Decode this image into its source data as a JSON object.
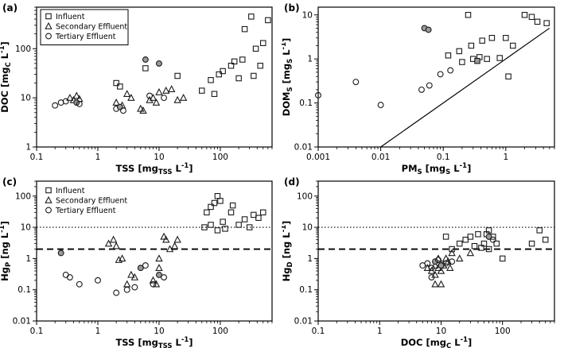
{
  "figure": {
    "background": "#ffffff",
    "axis_color": "#000000",
    "marker_stroke": "#1a1a1a",
    "gray_fill": "#9a9a9a"
  },
  "chart_data": [
    {
      "id": "a",
      "type": "scatter",
      "panel_label": "(a)",
      "xscale": "log",
      "yscale": "log",
      "xlim": [
        0.1,
        700
      ],
      "ylim": [
        1,
        700
      ],
      "xticks": [
        [
          0.1,
          "0.1"
        ],
        [
          1,
          "1"
        ],
        [
          10,
          "10"
        ],
        [
          100,
          "100"
        ]
      ],
      "yticks": [
        [
          1,
          "1"
        ],
        [
          10,
          "10"
        ],
        [
          100,
          "100"
        ]
      ],
      "xlabel_parts": [
        [
          "TSS [mg"
        ],
        [
          "TSS",
          "sub"
        ],
        [
          " L"
        ],
        [
          "-1",
          "sup"
        ],
        [
          "]"
        ]
      ],
      "ylabel_parts": [
        [
          "DOC [mg"
        ],
        [
          "C",
          "sub"
        ],
        [
          " L"
        ],
        [
          "-1",
          "sup"
        ],
        [
          "]"
        ]
      ],
      "legend_box": true,
      "legend": [
        {
          "marker": "square",
          "label": "Influent"
        },
        {
          "marker": "triangle",
          "label": "Secondary Effluent"
        },
        {
          "marker": "circle",
          "label": "Tertiary Effluent"
        }
      ],
      "series": [
        {
          "name": "Influent",
          "marker": "square",
          "points": [
            [
              2,
              20
            ],
            [
              2.3,
              17
            ],
            [
              6,
              40
            ],
            [
              20,
              28
            ],
            [
              50,
              14
            ],
            [
              70,
              23
            ],
            [
              80,
              12
            ],
            [
              95,
              30
            ],
            [
              110,
              35
            ],
            [
              150,
              45
            ],
            [
              170,
              55
            ],
            [
              200,
              25
            ],
            [
              230,
              60
            ],
            [
              250,
              250
            ],
            [
              320,
              450
            ],
            [
              380,
              100
            ],
            [
              450,
              45
            ],
            [
              500,
              130
            ],
            [
              600,
              380
            ],
            [
              350,
              28
            ]
          ]
        },
        {
          "name": "Secondary Effluent",
          "marker": "triangle",
          "points": [
            [
              0.35,
              10
            ],
            [
              0.4,
              9
            ],
            [
              0.45,
              11
            ],
            [
              0.5,
              9.5
            ],
            [
              2,
              8
            ],
            [
              2.5,
              7
            ],
            [
              3,
              12
            ],
            [
              3.5,
              10
            ],
            [
              5,
              6
            ],
            [
              5.5,
              5.5
            ],
            [
              7,
              9
            ],
            [
              8,
              10
            ],
            [
              9,
              8
            ],
            [
              10,
              13
            ],
            [
              13,
              14
            ],
            [
              16,
              15
            ],
            [
              20,
              9
            ],
            [
              25,
              10
            ]
          ]
        },
        {
          "name": "Tertiary Effluent",
          "marker": "circle",
          "points": [
            [
              0.2,
              7
            ],
            [
              0.25,
              8
            ],
            [
              0.3,
              8.5
            ],
            [
              0.45,
              8,
              "f"
            ],
            [
              0.5,
              7.5
            ],
            [
              2,
              6
            ],
            [
              2.3,
              6.5,
              "f"
            ],
            [
              2.6,
              5.5
            ],
            [
              6,
              60,
              "f"
            ],
            [
              7,
              11
            ],
            [
              10,
              50,
              "f"
            ],
            [
              12,
              10
            ]
          ]
        }
      ]
    },
    {
      "id": "b",
      "type": "scatter",
      "panel_label": "(b)",
      "xscale": "log",
      "yscale": "log",
      "xlim": [
        0.001,
        6
      ],
      "ylim": [
        0.01,
        15
      ],
      "xticks": [
        [
          0.001,
          "0.001"
        ],
        [
          0.01,
          "0.01"
        ],
        [
          0.1,
          "0.1"
        ],
        [
          1,
          "1"
        ]
      ],
      "yticks": [
        [
          0.01,
          "0.01"
        ],
        [
          0.1,
          "0.1"
        ],
        [
          1,
          "1"
        ],
        [
          10,
          "10"
        ]
      ],
      "xlabel_parts": [
        [
          "PM"
        ],
        [
          "S",
          "sub"
        ],
        [
          " [mg"
        ],
        [
          "S",
          "sub"
        ],
        [
          " L"
        ],
        [
          "-1",
          "sup"
        ],
        [
          "]"
        ]
      ],
      "ylabel_parts": [
        [
          "DOM"
        ],
        [
          "S",
          "sub"
        ],
        [
          " [mg"
        ],
        [
          "S",
          "sub"
        ],
        [
          " L"
        ],
        [
          "-1",
          "sup"
        ],
        [
          "]"
        ]
      ],
      "lines": [
        {
          "x1": 0.01,
          "y1": 0.01,
          "x2": 5,
          "y2": 5,
          "style": "solid"
        }
      ],
      "series": [
        {
          "name": "Influent",
          "marker": "square",
          "points": [
            [
              0.25,
              10
            ],
            [
              0.12,
              1.2
            ],
            [
              0.18,
              1.5
            ],
            [
              0.2,
              0.85
            ],
            [
              0.28,
              2
            ],
            [
              0.3,
              1
            ],
            [
              0.38,
              1.1
            ],
            [
              0.42,
              2.6
            ],
            [
              0.5,
              1
            ],
            [
              0.6,
              3
            ],
            [
              0.8,
              1.05
            ],
            [
              1,
              3
            ],
            [
              1.1,
              0.4
            ],
            [
              1.3,
              2
            ],
            [
              2,
              10
            ],
            [
              2.6,
              9
            ],
            [
              3.2,
              7
            ],
            [
              4.5,
              6.5
            ],
            [
              0.35,
              0.9,
              "f"
            ]
          ]
        },
        {
          "name": "Tertiary Effluent",
          "marker": "circle",
          "points": [
            [
              0.001,
              0.15
            ],
            [
              0.004,
              0.3
            ],
            [
              0.01,
              0.09
            ],
            [
              0.045,
              0.2
            ],
            [
              0.06,
              0.25
            ],
            [
              0.09,
              0.45
            ],
            [
              0.13,
              0.55
            ],
            [
              0.05,
              5,
              "f"
            ],
            [
              0.058,
              4.6,
              "f"
            ]
          ]
        }
      ]
    },
    {
      "id": "c",
      "type": "scatter",
      "panel_label": "(c)",
      "xscale": "log",
      "yscale": "log",
      "xlim": [
        0.1,
        700
      ],
      "ylim": [
        0.01,
        300
      ],
      "xticks": [
        [
          0.1,
          "0.1"
        ],
        [
          1,
          "1"
        ],
        [
          10,
          "10"
        ],
        [
          100,
          "100"
        ]
      ],
      "yticks": [
        [
          0.01,
          "0.01"
        ],
        [
          0.1,
          "0.1"
        ],
        [
          1,
          "1"
        ],
        [
          10,
          "10"
        ],
        [
          100,
          "100"
        ]
      ],
      "xlabel_parts": [
        [
          "TSS [mg"
        ],
        [
          "TSS",
          "sub"
        ],
        [
          " L"
        ],
        [
          "-1",
          "sup"
        ],
        [
          "]"
        ]
      ],
      "ylabel_parts": [
        [
          "Hg"
        ],
        [
          "P",
          "sub"
        ],
        [
          " [ng L"
        ],
        [
          "-1",
          "sup"
        ],
        [
          "]"
        ]
      ],
      "legend_box": false,
      "legend": [
        {
          "marker": "square",
          "label": "Influent"
        },
        {
          "marker": "triangle",
          "label": "Secondary Effluent"
        },
        {
          "marker": "circle",
          "label": "Tertiary Effluent"
        }
      ],
      "hlines": [
        {
          "y": 10,
          "style": "dotted"
        },
        {
          "y": 2,
          "style": "dashed"
        }
      ],
      "series": [
        {
          "name": "Influent",
          "marker": "square",
          "points": [
            [
              55,
              10
            ],
            [
              60,
              30
            ],
            [
              70,
              45
            ],
            [
              80,
              60
            ],
            [
              90,
              100
            ],
            [
              100,
              70
            ],
            [
              110,
              15
            ],
            [
              150,
              30
            ],
            [
              200,
              12
            ],
            [
              250,
              18
            ],
            [
              300,
              10
            ],
            [
              350,
              25
            ],
            [
              420,
              20
            ],
            [
              500,
              30
            ],
            [
              120,
              9
            ],
            [
              90,
              8
            ],
            [
              70,
              12
            ],
            [
              160,
              50
            ]
          ]
        },
        {
          "name": "Secondary Effluent",
          "marker": "triangle",
          "points": [
            [
              1.5,
              3
            ],
            [
              1.8,
              4
            ],
            [
              2,
              2.5
            ],
            [
              2.2,
              0.9
            ],
            [
              2.5,
              1
            ],
            [
              3,
              0.15
            ],
            [
              3.5,
              0.3
            ],
            [
              4,
              0.25
            ],
            [
              8,
              0.2
            ],
            [
              9,
              0.15
            ],
            [
              10,
              1
            ],
            [
              12,
              5
            ],
            [
              13,
              4
            ],
            [
              15,
              2
            ],
            [
              18,
              2.5
            ],
            [
              20,
              4
            ],
            [
              10,
              0.5
            ]
          ]
        },
        {
          "name": "Tertiary Effluent",
          "marker": "circle",
          "points": [
            [
              0.25,
              1.5,
              "f"
            ],
            [
              0.3,
              0.3
            ],
            [
              0.35,
              0.25
            ],
            [
              0.5,
              0.15
            ],
            [
              1,
              0.2
            ],
            [
              2,
              0.08
            ],
            [
              3,
              0.1
            ],
            [
              4,
              0.12
            ],
            [
              5,
              0.5,
              "f"
            ],
            [
              6,
              0.6
            ],
            [
              8,
              0.15
            ],
            [
              10,
              0.3,
              "f"
            ],
            [
              12,
              0.25
            ]
          ]
        }
      ]
    },
    {
      "id": "d",
      "type": "scatter",
      "panel_label": "(d)",
      "xscale": "log",
      "yscale": "log",
      "xlim": [
        0.1,
        700
      ],
      "ylim": [
        0.01,
        300
      ],
      "xticks": [
        [
          0.1,
          "0.1"
        ],
        [
          1,
          "1"
        ],
        [
          10,
          "10"
        ],
        [
          100,
          "100"
        ]
      ],
      "yticks": [
        [
          0.01,
          "0.01"
        ],
        [
          0.1,
          "0.1"
        ],
        [
          1,
          "1"
        ],
        [
          10,
          "10"
        ],
        [
          100,
          "100"
        ]
      ],
      "xlabel_parts": [
        [
          "DOC [mg"
        ],
        [
          "C",
          "sub"
        ],
        [
          " L"
        ],
        [
          "-1",
          "sup"
        ],
        [
          "]"
        ]
      ],
      "ylabel_parts": [
        [
          "Hg"
        ],
        [
          "D",
          "sub"
        ],
        [
          " [ng L"
        ],
        [
          "-1",
          "sup"
        ],
        [
          "]"
        ]
      ],
      "hlines": [
        {
          "y": 10,
          "style": "dotted"
        },
        {
          "y": 2,
          "style": "dashed"
        }
      ],
      "series": [
        {
          "name": "Influent",
          "marker": "square",
          "points": [
            [
              20,
              3
            ],
            [
              25,
              4
            ],
            [
              30,
              5
            ],
            [
              35,
              2.5
            ],
            [
              40,
              6
            ],
            [
              50,
              3
            ],
            [
              60,
              8
            ],
            [
              60,
              2
            ],
            [
              70,
              5
            ],
            [
              80,
              3
            ],
            [
              100,
              1
            ],
            [
              300,
              3
            ],
            [
              400,
              8
            ],
            [
              500,
              4
            ],
            [
              15,
              2
            ],
            [
              12,
              5
            ],
            [
              45,
              2.2
            ],
            [
              55,
              6
            ]
          ]
        },
        {
          "name": "Secondary Effluent",
          "marker": "triangle",
          "points": [
            [
              6,
              0.5
            ],
            [
              7,
              0.4
            ],
            [
              8,
              0.3
            ],
            [
              8,
              0.6
            ],
            [
              9,
              0.5
            ],
            [
              9,
              1
            ],
            [
              10,
              0.7
            ],
            [
              10,
              0.4
            ],
            [
              11,
              0.6
            ],
            [
              12,
              1
            ],
            [
              13,
              0.8
            ],
            [
              14,
              0.5
            ],
            [
              15,
              1.5
            ],
            [
              20,
              1
            ],
            [
              8,
              0.15
            ],
            [
              10,
              0.15
            ],
            [
              30,
              1.5
            ]
          ]
        },
        {
          "name": "Tertiary Effluent",
          "marker": "circle",
          "points": [
            [
              5,
              0.6
            ],
            [
              6,
              0.7
            ],
            [
              7,
              0.5
            ],
            [
              7,
              0.25
            ],
            [
              8,
              0.8,
              "f"
            ],
            [
              9,
              0.9
            ],
            [
              10,
              0.6,
              "f"
            ],
            [
              12,
              0.7
            ],
            [
              15,
              0.8
            ],
            [
              60,
              5,
              "f"
            ],
            [
              70,
              4
            ]
          ]
        }
      ]
    }
  ]
}
